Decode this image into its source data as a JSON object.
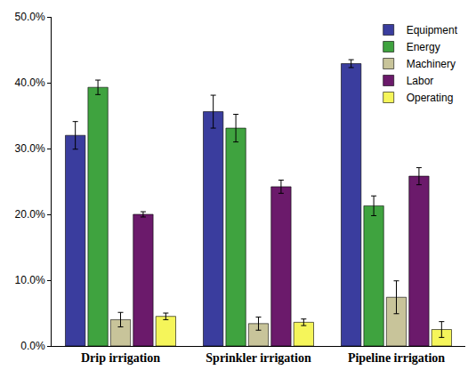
{
  "chart_data": {
    "type": "bar",
    "categories": [
      "Drip irrigation",
      "Sprinkler irrigation",
      "Pipeline irrigation"
    ],
    "series": [
      {
        "name": "Equipment",
        "color": "#3a3d9e",
        "values": [
          32.0,
          35.6,
          42.9
        ],
        "errors": [
          2.1,
          2.5,
          0.6
        ]
      },
      {
        "name": "Energy",
        "color": "#3fa33f",
        "values": [
          39.3,
          33.1,
          21.3
        ],
        "errors": [
          1.1,
          2.1,
          1.5
        ]
      },
      {
        "name": "Machinery",
        "color": "#c8c49a",
        "values": [
          4.0,
          3.4,
          7.4
        ],
        "errors": [
          1.1,
          1.0,
          2.5
        ]
      },
      {
        "name": "Labor",
        "color": "#6b1a6b",
        "values": [
          20.0,
          24.2,
          25.8
        ],
        "errors": [
          0.4,
          1.0,
          1.3
        ]
      },
      {
        "name": "Operating",
        "color": "#f5f55a",
        "values": [
          4.5,
          3.6,
          2.5
        ],
        "errors": [
          0.5,
          0.5,
          1.2
        ]
      }
    ],
    "ylim": [
      0,
      50
    ],
    "yticks": [
      {
        "value": 0,
        "label": "0.0%"
      },
      {
        "value": 10,
        "label": "10.0%"
      },
      {
        "value": 20,
        "label": "20.0%"
      },
      {
        "value": 30,
        "label": "30.0%"
      },
      {
        "value": 40,
        "label": "40.0%"
      },
      {
        "value": 50,
        "label": "50.0%"
      }
    ],
    "grid": false,
    "legend": "top-right"
  }
}
